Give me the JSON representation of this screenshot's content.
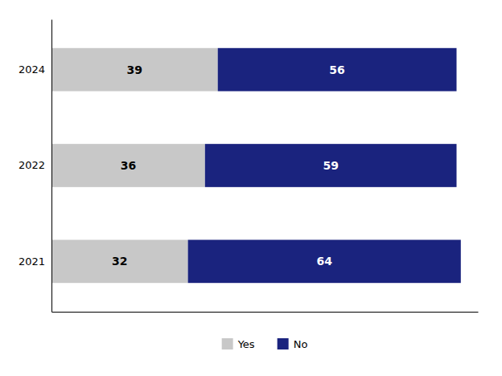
{
  "chart_data": {
    "type": "bar",
    "orientation": "horizontal",
    "stacked": true,
    "categories": [
      "2024",
      "2022",
      "2021"
    ],
    "series": [
      {
        "name": "Yes",
        "color": "#c8c8c8",
        "values": [
          39,
          36,
          32
        ]
      },
      {
        "name": "No",
        "color": "#1a237e",
        "values": [
          56,
          59,
          64
        ]
      }
    ],
    "xlim": [
      0,
      100
    ],
    "data_labels": true,
    "legend": "bottom",
    "tick_labels": "y"
  }
}
